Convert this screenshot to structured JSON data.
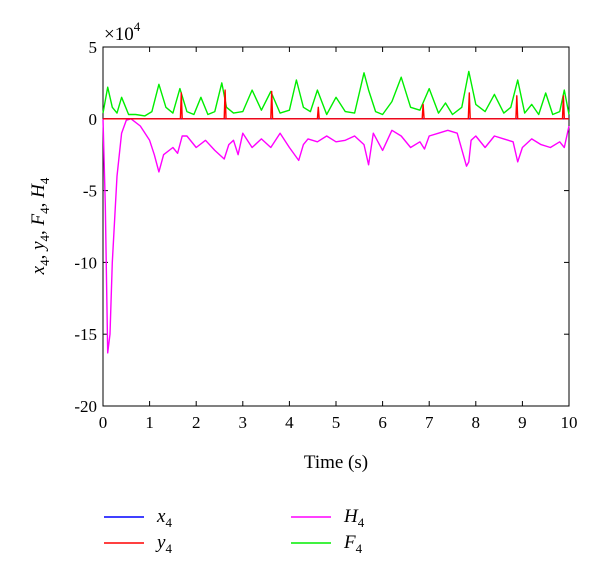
{
  "chart_data": {
    "type": "line",
    "xlabel": "Time (s)",
    "ylabel_parts": [
      {
        "v": "x",
        "s": "4"
      },
      {
        "v": "y",
        "s": "4"
      },
      {
        "v": "F",
        "s": "4"
      },
      {
        "v": "H",
        "s": "4"
      }
    ],
    "multiplier_base": "×10",
    "multiplier_exp": "4",
    "xlim": [
      0,
      10
    ],
    "ylim": [
      -20,
      5
    ],
    "xticks": [
      "0",
      "1",
      "2",
      "3",
      "4",
      "5",
      "6",
      "7",
      "8",
      "9",
      "10"
    ],
    "yticks": [
      "5",
      "0",
      "-5",
      "-10",
      "-15",
      "-20"
    ],
    "grid": false,
    "legend_position": "below",
    "series": [
      {
        "name": "x",
        "sub": "4",
        "color": "#0000ff",
        "x": [
          0,
          10
        ],
        "y": [
          0,
          0
        ]
      },
      {
        "name": "y",
        "sub": "4",
        "color": "#ff0000",
        "x": [
          0,
          1.66,
          1.68,
          1.7,
          2.6,
          2.62,
          2.64,
          3.6,
          3.62,
          3.64,
          4.6,
          4.62,
          4.64,
          6.85,
          6.87,
          6.89,
          7.84,
          7.86,
          7.88,
          8.86,
          8.88,
          8.9,
          9.86,
          9.88,
          9.9,
          10
        ],
        "y": [
          0,
          0,
          1.8,
          0,
          0,
          2.0,
          0,
          0,
          1.9,
          0,
          0,
          0.8,
          0,
          0,
          1.0,
          0,
          0,
          1.8,
          0,
          0,
          1.6,
          0,
          0,
          1.6,
          0,
          0
        ]
      },
      {
        "name": "H",
        "sub": "4",
        "color": "#ff00ff",
        "x": [
          0,
          0.05,
          0.1,
          0.15,
          0.2,
          0.3,
          0.4,
          0.5,
          0.6,
          0.8,
          1.0,
          1.1,
          1.2,
          1.3,
          1.5,
          1.6,
          1.7,
          1.8,
          2.0,
          2.2,
          2.4,
          2.6,
          2.7,
          2.8,
          2.9,
          3.0,
          3.2,
          3.4,
          3.6,
          3.8,
          4.0,
          4.2,
          4.3,
          4.4,
          4.6,
          4.8,
          5.0,
          5.2,
          5.4,
          5.6,
          5.7,
          5.8,
          6.0,
          6.2,
          6.4,
          6.6,
          6.8,
          6.9,
          7.0,
          7.2,
          7.4,
          7.6,
          7.8,
          7.85,
          7.9,
          8.0,
          8.2,
          8.4,
          8.6,
          8.8,
          8.9,
          9.0,
          9.2,
          9.4,
          9.6,
          9.8,
          9.9,
          10
        ],
        "y": [
          0,
          -6,
          -16.3,
          -15,
          -10,
          -4,
          -1,
          -0.1,
          0,
          -0.5,
          -1.5,
          -2.5,
          -3.7,
          -2.5,
          -2.0,
          -2.4,
          -1.2,
          -1.2,
          -2.0,
          -1.5,
          -2.2,
          -2.8,
          -1.8,
          -1.5,
          -2.5,
          -1.0,
          -2.0,
          -1.4,
          -2.0,
          -1.0,
          -2.0,
          -2.9,
          -1.8,
          -1.4,
          -1.6,
          -1.2,
          -1.6,
          -1.5,
          -1.2,
          -1.8,
          -3.2,
          -1.0,
          -2.2,
          -0.8,
          -1.2,
          -2.0,
          -1.6,
          -2.1,
          -1.2,
          -1.0,
          -0.8,
          -1.0,
          -3.3,
          -3.0,
          -1.5,
          -1.2,
          -2.0,
          -1.2,
          -1.4,
          -1.6,
          -3.0,
          -2.0,
          -1.4,
          -1.8,
          -2.0,
          -1.6,
          -2.0,
          -0.5
        ]
      },
      {
        "name": "F",
        "sub": "4",
        "color": "#00ee00",
        "x": [
          0,
          0.1,
          0.2,
          0.3,
          0.4,
          0.55,
          0.7,
          0.9,
          1.05,
          1.2,
          1.35,
          1.5,
          1.65,
          1.8,
          1.95,
          2.1,
          2.25,
          2.4,
          2.55,
          2.65,
          2.8,
          3.0,
          3.2,
          3.4,
          3.6,
          3.8,
          4.0,
          4.15,
          4.3,
          4.45,
          4.6,
          4.8,
          5.0,
          5.2,
          5.4,
          5.6,
          5.7,
          5.85,
          6.0,
          6.2,
          6.4,
          6.6,
          6.8,
          7.0,
          7.2,
          7.35,
          7.5,
          7.7,
          7.85,
          8.0,
          8.2,
          8.4,
          8.6,
          8.75,
          8.9,
          9.05,
          9.2,
          9.35,
          9.5,
          9.65,
          9.8,
          9.9,
          10
        ],
        "y": [
          0.4,
          2.2,
          0.8,
          0.4,
          1.5,
          0.3,
          0.3,
          0.2,
          0.5,
          2.4,
          0.8,
          0.4,
          2.1,
          0.5,
          0.3,
          1.5,
          0.3,
          0.5,
          2.5,
          0.8,
          0.4,
          0.5,
          2.0,
          0.6,
          1.9,
          0.4,
          0.6,
          2.7,
          0.8,
          0.5,
          2.0,
          0.3,
          1.5,
          0.5,
          0.4,
          3.2,
          2.0,
          0.5,
          0.3,
          1.2,
          2.9,
          0.8,
          0.6,
          2.1,
          0.4,
          1.1,
          0.3,
          0.8,
          3.3,
          1.0,
          0.5,
          1.7,
          0.4,
          0.8,
          2.7,
          0.4,
          1.0,
          0.3,
          1.8,
          0.3,
          0.5,
          2.0,
          0.3
        ]
      }
    ]
  }
}
